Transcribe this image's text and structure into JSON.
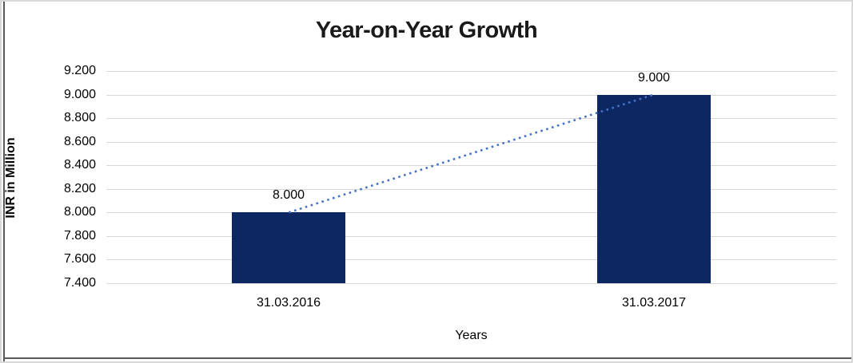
{
  "chart": {
    "frame": {
      "outer_border_color": "#D9D9D9",
      "inner_edge_color": "#595959",
      "background_color": "#FFFFFF"
    }
  },
  "chart_data": {
    "type": "bar",
    "title": "Year-on-Year Growth",
    "xlabel": "Years",
    "ylabel": "INR in Million",
    "categories": [
      "31.03.2016",
      "31.03.2017"
    ],
    "values": [
      8000,
      9000
    ],
    "data_labels": [
      "8.000",
      "9.000"
    ],
    "y_ticks": [
      {
        "value": 9200,
        "label": "9.200"
      },
      {
        "value": 9000,
        "label": "9.000"
      },
      {
        "value": 8800,
        "label": "8.800"
      },
      {
        "value": 8600,
        "label": "8.600"
      },
      {
        "value": 8400,
        "label": "8.400"
      },
      {
        "value": 8200,
        "label": "8.200"
      },
      {
        "value": 8000,
        "label": "8.000"
      },
      {
        "value": 7800,
        "label": "7.800"
      },
      {
        "value": 7600,
        "label": "7.600"
      },
      {
        "value": 7400,
        "label": "7.400"
      }
    ],
    "ylim": [
      7400,
      9200
    ],
    "grid": true,
    "gridline_color": "#D7D7D7",
    "bar_color": "#0D2763",
    "text_color": "#000000",
    "legend": "none",
    "trendline": {
      "style": "dotted",
      "color": "#4472C4",
      "from_value": 8000,
      "to_value": 9000
    }
  }
}
